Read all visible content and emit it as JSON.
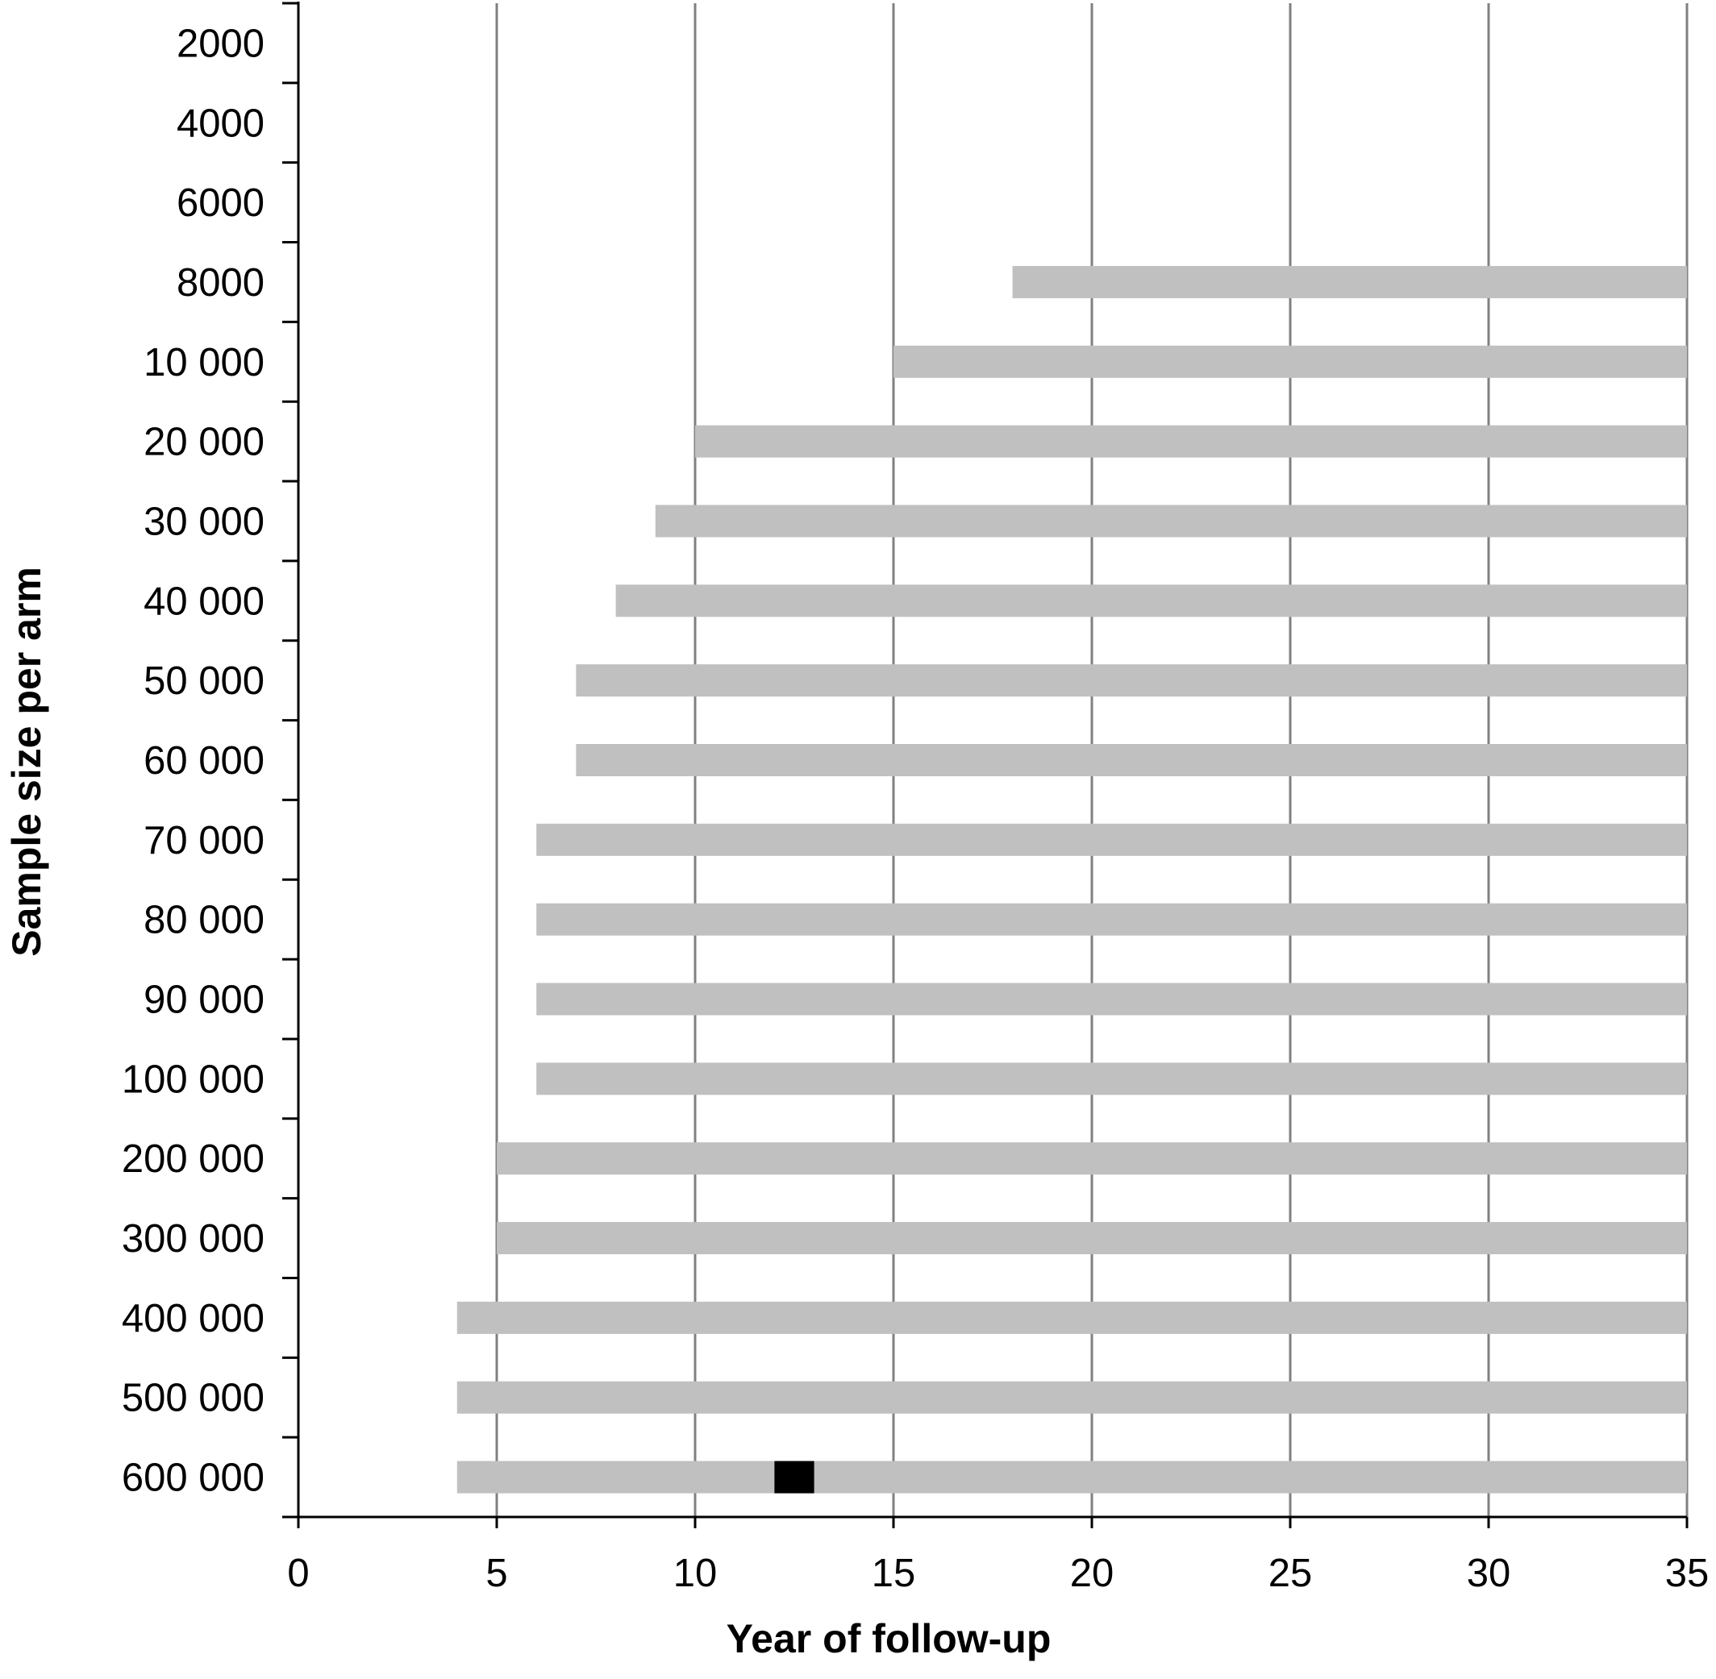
{
  "chart_data": {
    "type": "bar",
    "orientation": "horizontal",
    "xlabel": "Year of follow-up",
    "ylabel": "Sample size per arm",
    "xlim": [
      0,
      35
    ],
    "x_ticks": [
      "0",
      "5",
      "10",
      "15",
      "20",
      "25",
      "30",
      "35"
    ],
    "grid": "vertical",
    "categories": [
      "2000",
      "4000",
      "6000",
      "8000",
      "10 000",
      "20 000",
      "30 000",
      "40 000",
      "50 000",
      "60 000",
      "70 000",
      "80 000",
      "90 000",
      "100 000",
      "200 000",
      "300 000",
      "400 000",
      "500 000",
      "600 000"
    ],
    "series": [
      {
        "start": [
          null,
          null,
          null,
          18,
          15,
          10,
          9,
          8,
          7,
          7,
          6,
          6,
          6,
          6,
          5,
          5,
          4,
          4,
          4
        ],
        "end": [
          null,
          null,
          null,
          35,
          35,
          35,
          35,
          35,
          35,
          35,
          35,
          35,
          35,
          35,
          35,
          35,
          35,
          35,
          35
        ],
        "color": "#c0c0c0"
      }
    ],
    "highlight": {
      "category": "600 000",
      "start": 12,
      "end": 13,
      "color": "#000000"
    },
    "colors": {
      "bar": "#c0c0c0",
      "grid": "#808080",
      "axis": "#000000",
      "highlight": "#000000"
    }
  }
}
